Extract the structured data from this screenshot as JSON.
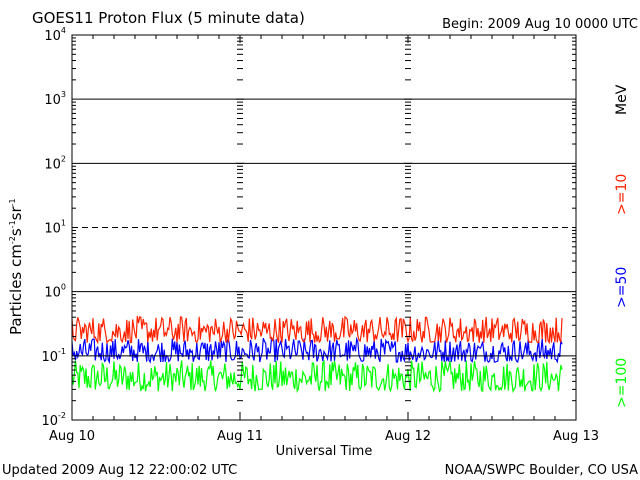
{
  "chart_data": {
    "type": "line",
    "title": "GOES11 Proton Flux (5 minute data)",
    "begin_label": "Begin: 2009 Aug 10 0000 UTC",
    "xlabel": "Universal Time",
    "ylabel": {
      "base": "Particles cm",
      "exp1": "-2",
      "s": "s",
      "exp2": "-1",
      "sr": "sr",
      "exp3": "-1"
    },
    "y_scale": "log",
    "ylim": [
      0.01,
      10000
    ],
    "y_ticks": [
      {
        "base": "10",
        "exp": "4",
        "value": 10000
      },
      {
        "base": "10",
        "exp": "3",
        "value": 1000
      },
      {
        "base": "10",
        "exp": "2",
        "value": 100
      },
      {
        "base": "10",
        "exp": "1",
        "value": 10
      },
      {
        "base": "10",
        "exp": "0",
        "value": 1
      },
      {
        "base": "10",
        "exp": "-1",
        "value": 0.1
      },
      {
        "base": "10",
        "exp": "-2",
        "value": 0.01
      }
    ],
    "x_days": [
      "Aug 10",
      "Aug 11",
      "Aug 12",
      "Aug 13"
    ],
    "xlim_hours": [
      0,
      72
    ],
    "grid": {
      "solid_levels": [
        1000,
        100,
        1,
        0.1
      ],
      "dashed_levels": [
        10
      ]
    },
    "series": [
      {
        "name": ">=10",
        "color": "#ff2200",
        "min": 0.16,
        "max": 0.42,
        "end_hour": 70
      },
      {
        "name": ">=50",
        "color": "#0000ff",
        "min": 0.08,
        "max": 0.19,
        "end_hour": 70
      },
      {
        "name": ">=100",
        "color": "#00ff00",
        "min": 0.028,
        "max": 0.085,
        "end_hour": 70
      }
    ],
    "legend_unit": "MeV",
    "legend_placement": "right"
  },
  "footer": {
    "updated": "Updated 2009 Aug 12 22:00:02 UTC",
    "credit": "NOAA/SWPC Boulder, CO USA"
  }
}
